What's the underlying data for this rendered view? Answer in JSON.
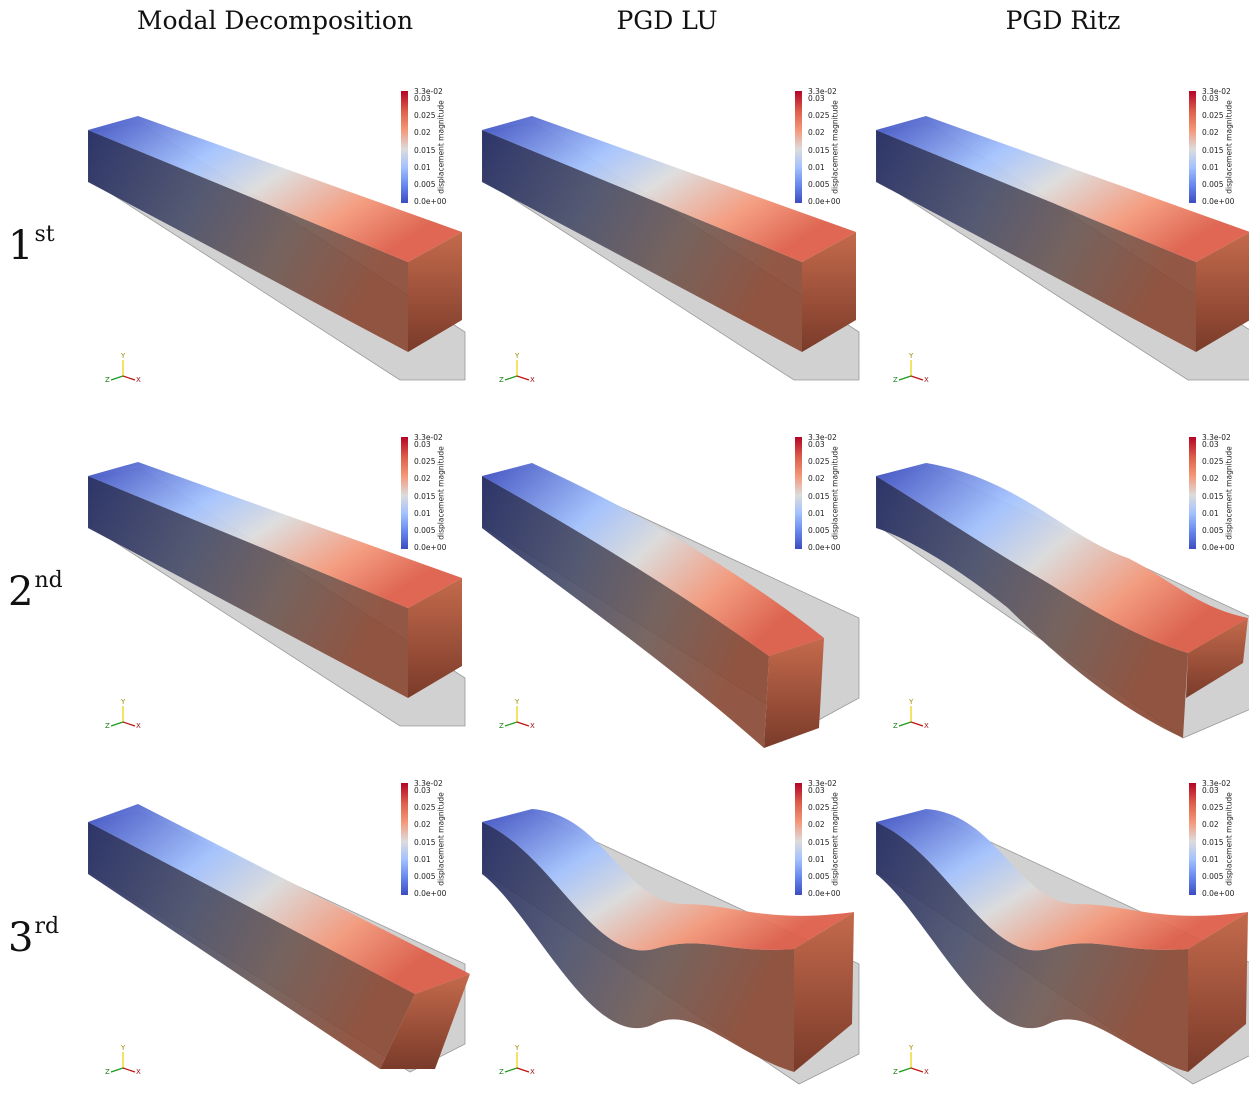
{
  "columns": [
    "Modal Decomposition",
    "PGD LU",
    "PGD Ritz"
  ],
  "rows": [
    {
      "base": "1",
      "sup": "st"
    },
    {
      "base": "2",
      "sup": "nd"
    },
    {
      "base": "3",
      "sup": "rd"
    }
  ],
  "colorbar": {
    "title": "displacement  magnitude",
    "ticks": [
      "3.3e-02",
      "0.03",
      "0.025",
      "0.02",
      "0.015",
      "0.01",
      "0.005",
      "0.0e+00"
    ],
    "max_label": "3.3e-02",
    "min_label": "0.0e+00",
    "colormap": [
      "#3b4cc0",
      "#6788ee",
      "#a3c2fe",
      "#dcdcdc",
      "#f4987a",
      "#dd5f4b",
      "#b40426"
    ]
  },
  "axes_labels": {
    "y": "Y",
    "z": "Z",
    "x": "X"
  },
  "colors": {
    "undeformed": "#b8b8b8",
    "low": "#3b4cc0",
    "high": "#b40426"
  }
}
